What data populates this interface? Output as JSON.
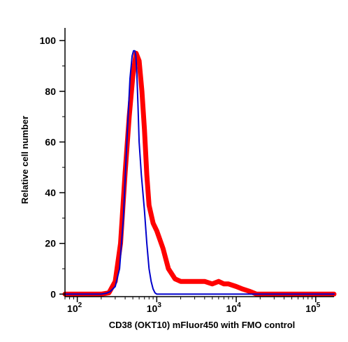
{
  "chart_data": {
    "type": "line",
    "title": "",
    "xlabel": "CD38 (OKT10) mFluor450 with FMO control",
    "ylabel": "Relative cell number",
    "x_scale": "log",
    "xlim": [
      70,
      170000
    ],
    "ylim": [
      -1,
      105
    ],
    "x_ticks": [
      {
        "value": 100,
        "base": "10",
        "exp": "2"
      },
      {
        "value": 1000,
        "base": "10",
        "exp": "3"
      },
      {
        "value": 10000,
        "base": "10",
        "exp": "4"
      },
      {
        "value": 100000,
        "base": "10",
        "exp": "5"
      }
    ],
    "y_ticks": [
      {
        "value": 0,
        "label": "0"
      },
      {
        "value": 20,
        "label": "20"
      },
      {
        "value": 40,
        "label": "40"
      },
      {
        "value": 60,
        "label": "60"
      },
      {
        "value": 80,
        "label": "80"
      },
      {
        "value": 100,
        "label": "100"
      }
    ],
    "grid": false,
    "legend": "none",
    "series": [
      {
        "color": "#ff0000",
        "line_width": "thick",
        "x": [
          70,
          150,
          200,
          250,
          300,
          350,
          400,
          450,
          500,
          550,
          600,
          650,
          700,
          750,
          800,
          900,
          1000,
          1200,
          1400,
          1700,
          2000,
          2500,
          3000,
          3500,
          4000,
          5000,
          6000,
          7000,
          8000,
          10000,
          12000,
          15000,
          18000,
          21000,
          30000,
          60000,
          170000
        ],
        "y": [
          0,
          0,
          0,
          0.5,
          5,
          20,
          48,
          70,
          86,
          95,
          92,
          80,
          65,
          47,
          35,
          28,
          25,
          18,
          10,
          6,
          5,
          5,
          5,
          5,
          5,
          4,
          5,
          4,
          4,
          3,
          2,
          1,
          0,
          0,
          0,
          0,
          0
        ]
      },
      {
        "color": "#0000cc",
        "line_width": "thin",
        "x": [
          70,
          200,
          230,
          260,
          300,
          340,
          380,
          420,
          460,
          490,
          510,
          530,
          545,
          560,
          580,
          600,
          640,
          700,
          750,
          800,
          850,
          900,
          950,
          1000,
          1100,
          1300,
          2000,
          170000
        ],
        "y": [
          0,
          0,
          0.3,
          1,
          3,
          10,
          30,
          60,
          85,
          94,
          96,
          96,
          94,
          88,
          75,
          60,
          47,
          33,
          20,
          10,
          5,
          2,
          0.5,
          0,
          0,
          0,
          0,
          0
        ]
      }
    ]
  }
}
